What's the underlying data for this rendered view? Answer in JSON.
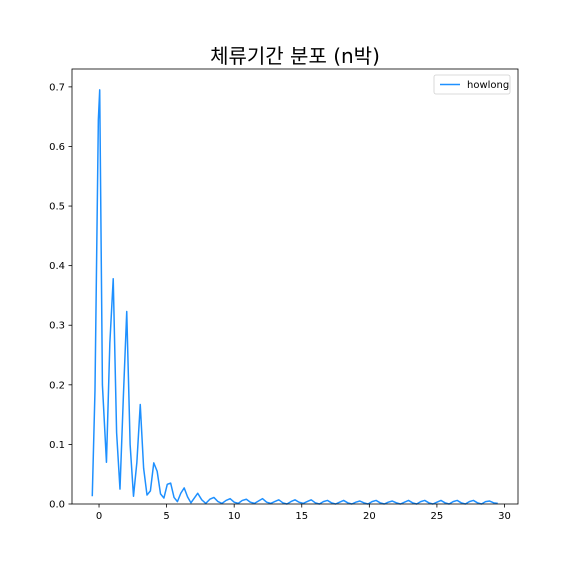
{
  "chart_data": {
    "type": "line",
    "title": "체류기간 분포 (n박)",
    "xlabel": "",
    "ylabel": "",
    "xlim": [
      -2,
      31
    ],
    "ylim": [
      0,
      0.73
    ],
    "xticks": [
      0,
      5,
      10,
      15,
      20,
      25,
      30
    ],
    "yticks": [
      0.0,
      0.1,
      0.2,
      0.3,
      0.4,
      0.5,
      0.6,
      0.7
    ],
    "ytick_labels": [
      "0.0",
      "0.1",
      "0.2",
      "0.3",
      "0.4",
      "0.5",
      "0.6",
      "0.7"
    ],
    "grid": false,
    "legend_position": "top-right",
    "series": [
      {
        "name": "howlong",
        "color": "#1e90ff",
        "x": [
          -0.5,
          -0.3,
          -0.05,
          0.05,
          0.25,
          0.55,
          0.8,
          1.05,
          1.3,
          1.55,
          1.8,
          2.05,
          2.3,
          2.55,
          2.8,
          3.05,
          3.3,
          3.55,
          3.8,
          4.05,
          4.3,
          4.55,
          4.8,
          5.05,
          5.3,
          5.55,
          5.8,
          6.05,
          6.3,
          6.55,
          6.8,
          7.05,
          7.3,
          7.6,
          7.9,
          8.2,
          8.5,
          8.8,
          9.1,
          9.4,
          9.7,
          10.0,
          10.3,
          10.6,
          10.9,
          11.2,
          11.5,
          11.8,
          12.1,
          12.4,
          12.7,
          13.0,
          13.3,
          13.6,
          13.9,
          14.2,
          14.5,
          14.8,
          15.1,
          15.4,
          15.7,
          16.0,
          16.3,
          16.6,
          16.9,
          17.2,
          17.5,
          17.8,
          18.1,
          18.4,
          18.7,
          19.0,
          19.3,
          19.6,
          19.9,
          20.2,
          20.5,
          20.8,
          21.1,
          21.4,
          21.7,
          22.0,
          22.3,
          22.6,
          22.9,
          23.2,
          23.5,
          23.8,
          24.1,
          24.4,
          24.7,
          25.0,
          25.3,
          25.6,
          25.9,
          26.2,
          26.5,
          26.8,
          27.1,
          27.4,
          27.7,
          28.0,
          28.3,
          28.6,
          28.9,
          29.2,
          29.5
        ],
        "y": [
          0.013,
          0.19,
          0.645,
          0.695,
          0.2,
          0.07,
          0.27,
          0.378,
          0.12,
          0.025,
          0.18,
          0.323,
          0.1,
          0.013,
          0.07,
          0.167,
          0.06,
          0.015,
          0.022,
          0.069,
          0.055,
          0.017,
          0.01,
          0.033,
          0.035,
          0.011,
          0.004,
          0.018,
          0.027,
          0.012,
          0.002,
          0.01,
          0.018,
          0.007,
          0.001,
          0.008,
          0.011,
          0.004,
          0.001,
          0.006,
          0.009,
          0.003,
          0.001,
          0.006,
          0.008,
          0.003,
          0.001,
          0.005,
          0.009,
          0.003,
          0.001,
          0.004,
          0.007,
          0.002,
          0.0,
          0.004,
          0.007,
          0.003,
          0.001,
          0.004,
          0.007,
          0.002,
          0.0,
          0.004,
          0.006,
          0.002,
          0.0,
          0.003,
          0.006,
          0.002,
          0.0,
          0.003,
          0.005,
          0.002,
          0.0,
          0.004,
          0.006,
          0.002,
          0.0,
          0.003,
          0.005,
          0.002,
          0.0,
          0.003,
          0.006,
          0.002,
          0.0,
          0.004,
          0.006,
          0.002,
          0.0,
          0.003,
          0.006,
          0.002,
          0.0,
          0.004,
          0.006,
          0.002,
          0.0,
          0.004,
          0.006,
          0.002,
          0.0,
          0.004,
          0.005,
          0.002,
          0.001
        ]
      }
    ]
  }
}
